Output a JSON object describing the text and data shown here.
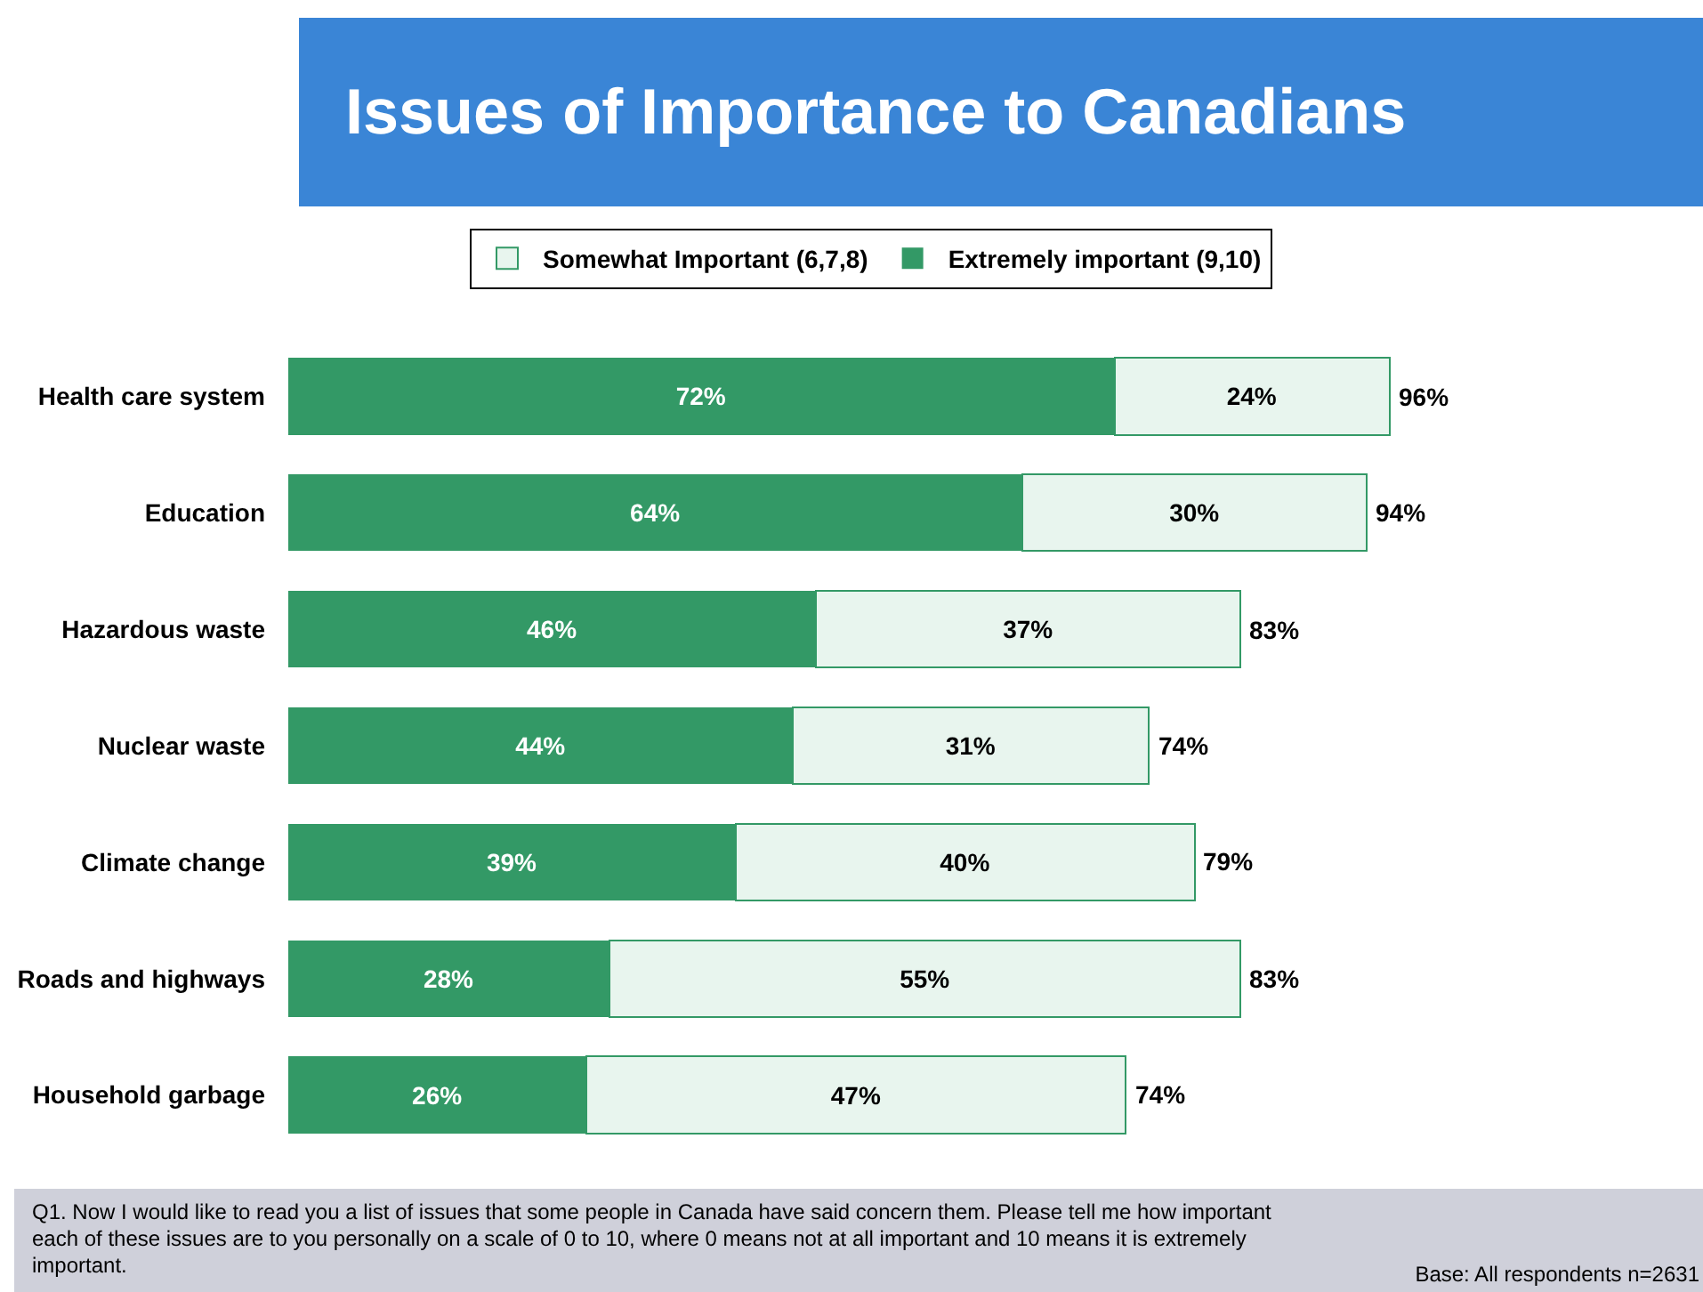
{
  "chart_data": {
    "type": "bar",
    "orientation": "horizontal",
    "stacked": true,
    "title": "Issues of Importance to Canadians",
    "categories": [
      "Health care system",
      "Education",
      "Hazardous waste",
      "Nuclear waste",
      "Climate change",
      "Roads and highways",
      "Household garbage"
    ],
    "series": [
      {
        "name": "Extremely important (9,10)",
        "color": "#339966",
        "values": [
          72,
          64,
          46,
          44,
          39,
          28,
          26
        ],
        "value_labels": [
          "72%",
          "64%",
          "46%",
          "44%",
          "39%",
          "28%",
          "26%"
        ]
      },
      {
        "name": "Somewhat Important (6,7,8)",
        "color": "#e8f5ee",
        "values": [
          24,
          30,
          37,
          31,
          40,
          55,
          47
        ],
        "value_labels": [
          "24%",
          "30%",
          "37%",
          "31%",
          "40%",
          "55%",
          "47%"
        ]
      }
    ],
    "totals": [
      "96%",
      "94%",
      "83%",
      "74%",
      "79%",
      "83%",
      "74%"
    ],
    "legend": "top",
    "grid": false,
    "tick_labels": "y",
    "annotations": [
      "Q1. Now I would like to read you a list of issues that some people in Canada have said concern them. Please tell me how important each of these issues are to you personally on a scale of 0 to 10, where 0 means not at all important and 10 means it is extremely important.",
      "Base: All respondents n=2631"
    ]
  }
}
